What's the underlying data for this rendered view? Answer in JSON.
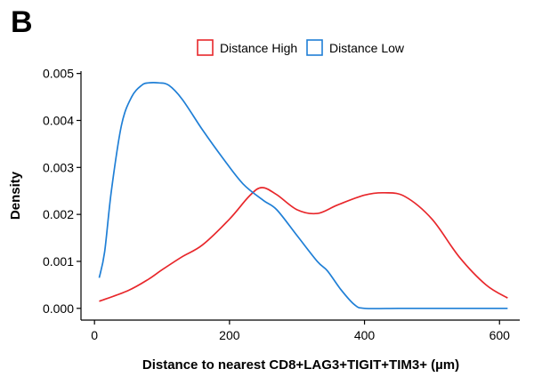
{
  "panel_label": "B",
  "chart_data": {
    "type": "line",
    "title": "",
    "xlabel": "Distance to nearest CD8+LAG3+TIGIT+TIM3+ (µm)",
    "ylabel": "Density",
    "xlim": [
      -20,
      630
    ],
    "ylim": [
      -0.00025,
      0.00505
    ],
    "xticks": [
      0,
      200,
      400,
      600
    ],
    "yticks": [
      0.0,
      0.001,
      0.002,
      0.003,
      0.004,
      0.005
    ],
    "ytick_labels": [
      "0.000",
      "0.001",
      "0.002",
      "0.003",
      "0.004",
      "0.005"
    ],
    "grid": false,
    "legend": "top-center",
    "series": [
      {
        "name": "Distance High",
        "color": "#e8272b",
        "x": [
          7,
          50,
          80,
          100,
          130,
          160,
          200,
          230,
          248,
          270,
          300,
          330,
          360,
          400,
          430,
          460,
          500,
          540,
          580,
          612
        ],
        "y": [
          0.00015,
          0.00038,
          0.00062,
          0.00082,
          0.0011,
          0.00135,
          0.0019,
          0.0024,
          0.00257,
          0.00242,
          0.0021,
          0.00202,
          0.0022,
          0.00241,
          0.00246,
          0.00238,
          0.0019,
          0.0011,
          0.0005,
          0.00022
        ]
      },
      {
        "name": "Distance Low",
        "color": "#1f7fd6",
        "x": [
          7,
          15,
          25,
          40,
          55,
          70,
          80,
          95,
          110,
          130,
          160,
          190,
          220,
          250,
          270,
          300,
          330,
          345,
          365,
          385,
          400,
          450,
          500,
          550,
          612
        ],
        "y": [
          0.00065,
          0.0012,
          0.0025,
          0.0039,
          0.0045,
          0.00475,
          0.0048,
          0.0048,
          0.00475,
          0.00445,
          0.0038,
          0.0032,
          0.00265,
          0.0023,
          0.0021,
          0.00155,
          0.001,
          0.0008,
          0.0004,
          8e-05,
          0.0,
          0.0,
          0.0,
          0.0,
          0.0
        ]
      }
    ]
  }
}
